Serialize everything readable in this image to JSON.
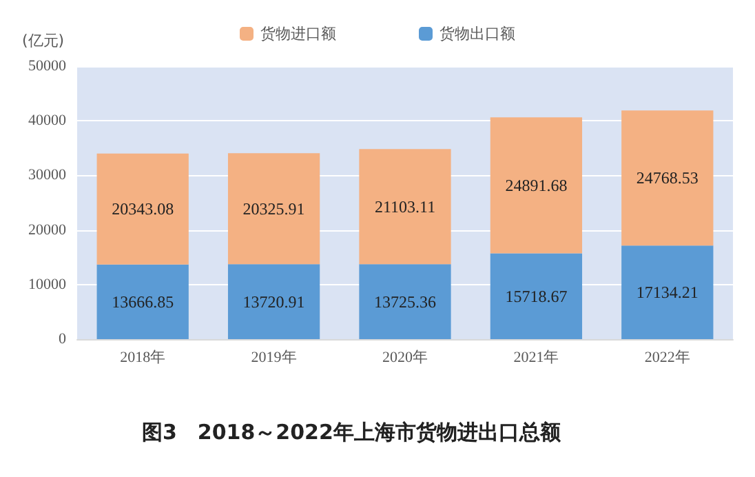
{
  "chart_data": {
    "type": "bar",
    "title": "图3　2018～2022年上海市货物进出口总额",
    "ylabel": "(亿元)",
    "categories": [
      "2018年",
      "2019年",
      "2020年",
      "2021年",
      "2022年"
    ],
    "stacked": true,
    "series": [
      {
        "name": "货物出口额",
        "color": "#5b9bd5",
        "values": [
          13666.85,
          13720.91,
          13725.36,
          15718.67,
          17134.21
        ]
      },
      {
        "name": "货物进口额",
        "color": "#f4b183",
        "values": [
          20343.08,
          20325.91,
          21103.11,
          24891.68,
          24768.53
        ]
      }
    ],
    "ylim": [
      0,
      50000
    ],
    "yticks": [
      0,
      10000,
      20000,
      30000,
      40000,
      50000
    ],
    "grid": "y",
    "legend": "top",
    "data_labels": true
  }
}
